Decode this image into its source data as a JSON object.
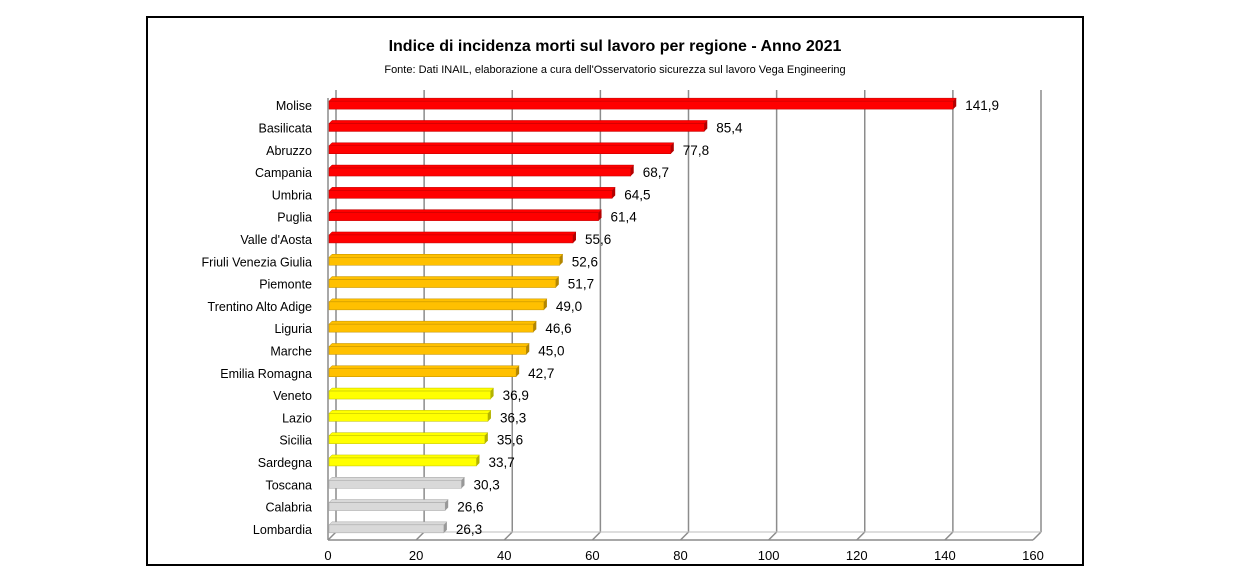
{
  "chart_data": {
    "type": "bar",
    "orientation": "horizontal",
    "title": "Indice di incidenza morti sul lavoro per regione - Anno 2021",
    "subtitle": "Fonte: Dati INAIL, elaborazione a cura dell'Osservatorio sicurezza sul lavoro Vega Engineering",
    "categories": [
      "Molise",
      "Basilicata",
      "Abruzzo",
      "Campania",
      "Umbria",
      "Puglia",
      "Valle d'Aosta",
      "Friuli Venezia Giulia",
      "Piemonte",
      "Trentino Alto Adige",
      "Liguria",
      "Marche",
      "Emilia Romagna",
      "Veneto",
      "Lazio",
      "Sicilia",
      "Sardegna",
      "Toscana",
      "Calabria",
      "Lombardia"
    ],
    "values": [
      141.9,
      85.4,
      77.8,
      68.7,
      64.5,
      61.4,
      55.6,
      52.6,
      51.7,
      49.0,
      46.6,
      45.0,
      42.7,
      36.9,
      36.3,
      35.6,
      33.7,
      30.3,
      26.6,
      26.3
    ],
    "value_labels": [
      "141,9",
      "85,4",
      "77,8",
      "68,7",
      "64,5",
      "61,4",
      "55,6",
      "52,6",
      "51,7",
      "49,0",
      "46,6",
      "45,0",
      "42,7",
      "36,9",
      "36,3",
      "35,6",
      "33,7",
      "30,3",
      "26,6",
      "26,3"
    ],
    "bar_colors": [
      "#ff0000",
      "#ff0000",
      "#ff0000",
      "#ff0000",
      "#ff0000",
      "#ff0000",
      "#ff0000",
      "#ffc000",
      "#ffc000",
      "#ffc000",
      "#ffc000",
      "#ffc000",
      "#ffc000",
      "#ffff00",
      "#ffff00",
      "#ffff00",
      "#ffff00",
      "#d9d9d9",
      "#d9d9d9",
      "#d9d9d9"
    ],
    "xlim": [
      0,
      160
    ],
    "xticks": [
      0,
      20,
      40,
      60,
      80,
      100,
      120,
      140,
      160
    ],
    "xtick_labels": [
      "0",
      "20",
      "40",
      "60",
      "80",
      "100",
      "120",
      "140",
      "160"
    ],
    "grid": "vertical"
  }
}
